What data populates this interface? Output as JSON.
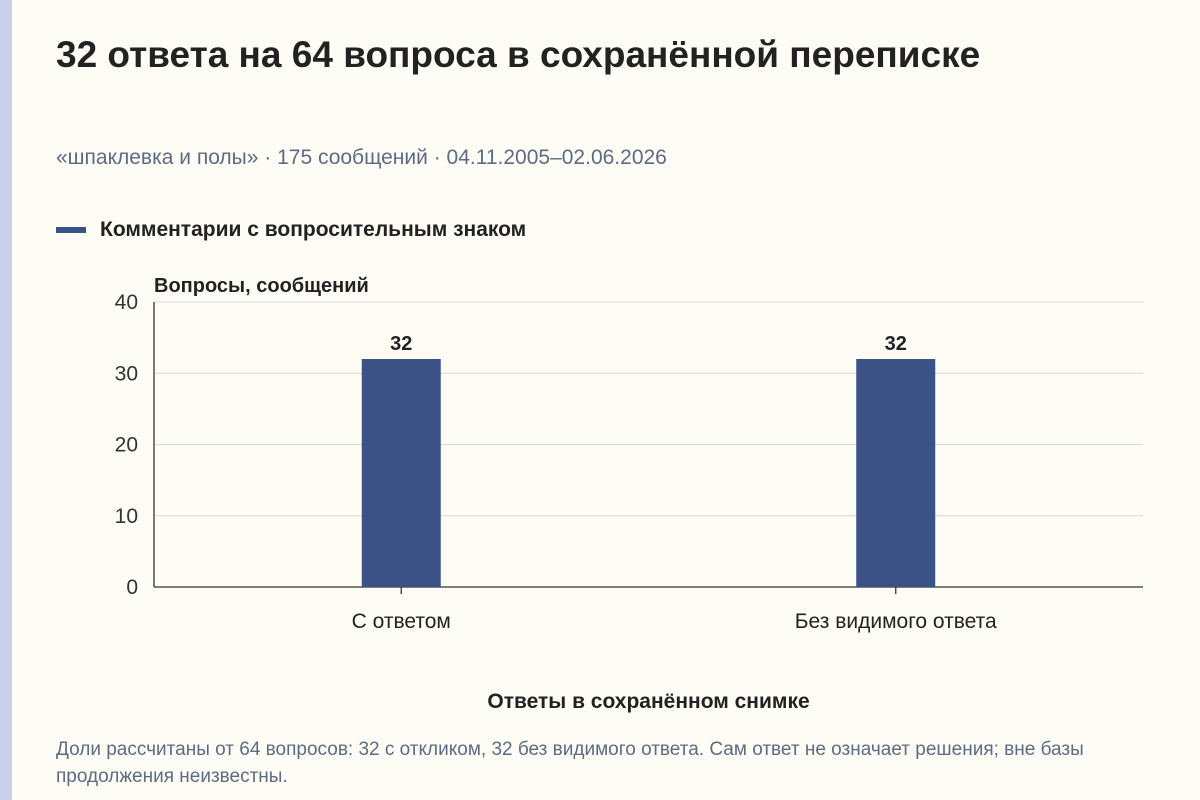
{
  "title": "32 ответа на 64 вопроса в сохранённой переписке",
  "subtitle": "«шпаклевка и полы» · 175 сообщений · 04.11.2005–02.06.2026",
  "note": "Доли рассчитаны от 64 вопросов: 32 с откликом, 32 без видимого ответа. Сам ответ не означает решения; вне базы продолжения неизвестны.",
  "colors": {
    "bar": "#3b5287",
    "accent": "#c9d0ea",
    "background": "#fdfcf5"
  },
  "chart_data": {
    "type": "bar",
    "categories": [
      "С ответом",
      "Без видимого ответа"
    ],
    "series": [
      {
        "name": "Комментарии с вопросительным знаком",
        "values": [
          32,
          32
        ]
      }
    ],
    "data_labels": [
      "32",
      "32"
    ],
    "ylabel": "Вопросы, сообщений",
    "xlabel": "Ответы в сохранённом снимке",
    "ylim": [
      0,
      40
    ],
    "yticks": [
      0,
      10,
      20,
      30,
      40
    ],
    "grid": true,
    "legend_position": "top-left"
  }
}
